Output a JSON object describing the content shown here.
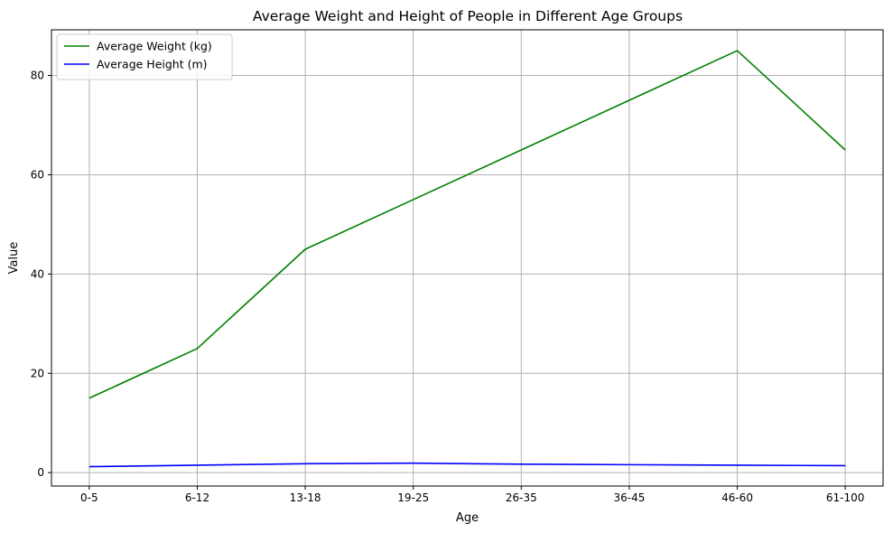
{
  "chart_data": {
    "type": "line",
    "title": "Average Weight and Height of People in Different Age Groups",
    "xlabel": "Age",
    "ylabel": "Value",
    "categories": [
      "0-5",
      "6-12",
      "13-18",
      "19-25",
      "26-35",
      "36-45",
      "46-60",
      "61-100"
    ],
    "series": [
      {
        "name": "Average Weight (kg)",
        "color": "#008000",
        "values": [
          15,
          25,
          45,
          55,
          65,
          75,
          85,
          65
        ]
      },
      {
        "name": "Average Height (m)",
        "color": "#0000ff",
        "values": [
          1.2,
          1.5,
          1.8,
          1.9,
          1.7,
          1.6,
          1.5,
          1.4
        ]
      }
    ],
    "ylim": [
      -2.7,
      89.2
    ],
    "yticks": [
      0,
      20,
      40,
      60,
      80
    ],
    "grid": true,
    "legend_position": "upper-left"
  }
}
